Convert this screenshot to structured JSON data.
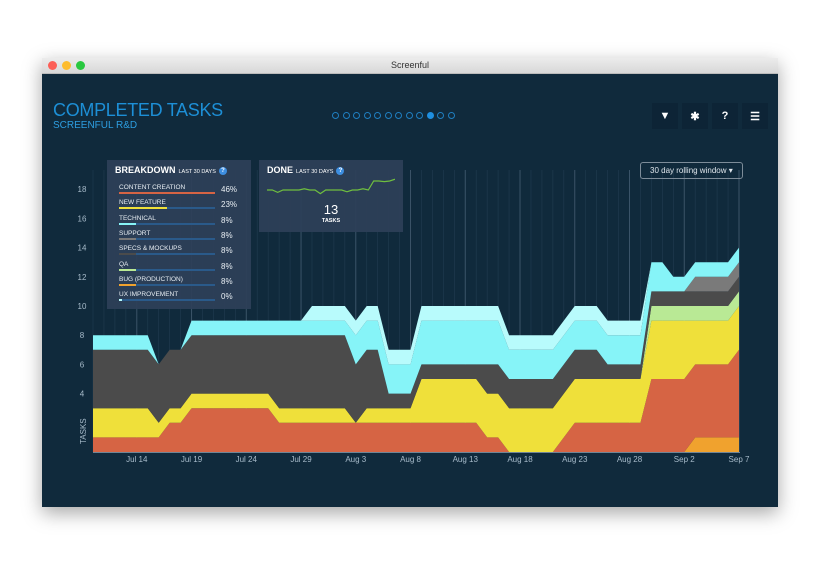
{
  "window": {
    "title": "Screenful"
  },
  "header": {
    "title": "COMPLETED TASKS",
    "subtitle": "SCREENFUL R&D",
    "pages": 12,
    "active_page": 10,
    "icons": [
      "filter-icon",
      "gear-icon",
      "help-icon",
      "menu-icon"
    ]
  },
  "controls": {
    "window_select": "30 day rolling window ▾"
  },
  "breakdown": {
    "title": "BREAKDOWN",
    "period": "LAST 30 DAYS",
    "help": "?",
    "items": [
      {
        "label": "CONTENT CREATION",
        "pct": "46%",
        "value": 46,
        "color": "#d66444"
      },
      {
        "label": "NEW FEATURE",
        "pct": "23%",
        "value": 23,
        "color": "#efe03a"
      },
      {
        "label": "TECHNICAL",
        "pct": "8%",
        "value": 8,
        "color": "#86f4f8"
      },
      {
        "label": "SUPPORT",
        "pct": "8%",
        "value": 8,
        "color": "#7a7a7a"
      },
      {
        "label": "SPECS & MOCKUPS",
        "pct": "8%",
        "value": 8,
        "color": "#4b4b4b"
      },
      {
        "label": "QA",
        "pct": "8%",
        "value": 8,
        "color": "#b9e995"
      },
      {
        "label": "BUG (PRODUCTION)",
        "pct": "8%",
        "value": 8,
        "color": "#f0a22e"
      },
      {
        "label": "UX IMPROVEMENT",
        "pct": "0%",
        "value": 0,
        "color": "#b8fbfc"
      }
    ]
  },
  "done": {
    "title": "DONE",
    "period": "LAST 30 DAYS",
    "help": "?",
    "count": "13",
    "unit": "TASKS",
    "sparkline": [
      8,
      8,
      7.6,
      8,
      8,
      8,
      8,
      8.2,
      8,
      8,
      7.4,
      8,
      8,
      8,
      8,
      7.7,
      8,
      8,
      8.2,
      8,
      9.5,
      9.5,
      9.4,
      9.5,
      9.8
    ],
    "color": "#6fbf3f"
  },
  "chart_data": {
    "type": "area",
    "stacked": true,
    "ylabel": "TASKS",
    "ylim": [
      0,
      19
    ],
    "yticks": [
      4,
      6,
      8,
      10,
      12,
      14,
      16,
      18
    ],
    "xtick_labels": [
      "Jul 14",
      "Jul 19",
      "Jul 24",
      "Jul 29",
      "Aug 3",
      "Aug 8",
      "Aug 13",
      "Aug 18",
      "Aug 23",
      "Aug 28",
      "Sep 2",
      "Sep 7"
    ],
    "x": [
      "Jul 10",
      "Jul 11",
      "Jul 12",
      "Jul 13",
      "Jul 14",
      "Jul 15",
      "Jul 16",
      "Jul 17",
      "Jul 18",
      "Jul 19",
      "Jul 20",
      "Jul 21",
      "Jul 22",
      "Jul 23",
      "Jul 24",
      "Jul 25",
      "Jul 26",
      "Jul 27",
      "Jul 28",
      "Jul 29",
      "Jul 30",
      "Jul 31",
      "Aug 1",
      "Aug 2",
      "Aug 3",
      "Aug 4",
      "Aug 5",
      "Aug 6",
      "Aug 7",
      "Aug 8",
      "Aug 9",
      "Aug 10",
      "Aug 11",
      "Aug 12",
      "Aug 13",
      "Aug 14",
      "Aug 15",
      "Aug 16",
      "Aug 17",
      "Aug 18",
      "Aug 19",
      "Aug 20",
      "Aug 21",
      "Aug 22",
      "Aug 23",
      "Aug 24",
      "Aug 25",
      "Aug 26",
      "Aug 27",
      "Aug 28",
      "Aug 29",
      "Aug 30",
      "Aug 31",
      "Sep 1",
      "Sep 2",
      "Sep 3",
      "Sep 4",
      "Sep 5",
      "Sep 6",
      "Sep 7"
    ],
    "series": [
      {
        "name": "BUG (PRODUCTION)",
        "color": "#f0a22e",
        "values": [
          0,
          0,
          0,
          0,
          0,
          0,
          0,
          0,
          0,
          0,
          0,
          0,
          0,
          0,
          0,
          0,
          0,
          0,
          0,
          0,
          0,
          0,
          0,
          0,
          0,
          0,
          0,
          0,
          0,
          0,
          0,
          0,
          0,
          0,
          0,
          0,
          0,
          0,
          0,
          0,
          0,
          0,
          0,
          0,
          0,
          0,
          0,
          0,
          0,
          0,
          0,
          0,
          0,
          0,
          0,
          1,
          1,
          1,
          1,
          1
        ]
      },
      {
        "name": "CONTENT CREATION",
        "color": "#d66444",
        "values": [
          1,
          1,
          1,
          1,
          1,
          1,
          1,
          2,
          2,
          3,
          3,
          3,
          3,
          3,
          3,
          3,
          3,
          2,
          2,
          2,
          2,
          2,
          2,
          2,
          2,
          2,
          2,
          2,
          2,
          2,
          2,
          2,
          2,
          2,
          2,
          2,
          1,
          1,
          0,
          0,
          0,
          0,
          0,
          1,
          2,
          2,
          2,
          2,
          2,
          2,
          2,
          5,
          5,
          5,
          5,
          5,
          5,
          5,
          5,
          6
        ]
      },
      {
        "name": "NEW FEATURE",
        "color": "#efe03a",
        "values": [
          2,
          2,
          2,
          2,
          2,
          2,
          1,
          1,
          1,
          1,
          1,
          1,
          1,
          1,
          1,
          1,
          1,
          1,
          1,
          1,
          1,
          1,
          1,
          1,
          0,
          1,
          1,
          1,
          1,
          1,
          3,
          3,
          3,
          3,
          3,
          3,
          3,
          3,
          3,
          3,
          3,
          3,
          3,
          3,
          3,
          3,
          3,
          3,
          3,
          3,
          3,
          4,
          4,
          4,
          4,
          3,
          3,
          3,
          3,
          3
        ]
      },
      {
        "name": "QA",
        "color": "#b9e995",
        "values": [
          0,
          0,
          0,
          0,
          0,
          0,
          0,
          0,
          0,
          0,
          0,
          0,
          0,
          0,
          0,
          0,
          0,
          0,
          0,
          0,
          0,
          0,
          0,
          0,
          0,
          0,
          0,
          0,
          0,
          0,
          0,
          0,
          0,
          0,
          0,
          0,
          0,
          0,
          0,
          0,
          0,
          0,
          0,
          0,
          0,
          0,
          0,
          0,
          0,
          0,
          0,
          1,
          1,
          1,
          1,
          1,
          1,
          1,
          1,
          1
        ]
      },
      {
        "name": "SPECS & MOCKUPS",
        "color": "#4b4b4b",
        "values": [
          4,
          4,
          4,
          4,
          4,
          4,
          4,
          4,
          4,
          4,
          4,
          4,
          4,
          4,
          4,
          4,
          4,
          5,
          5,
          5,
          5,
          5,
          5,
          5,
          4,
          4,
          4,
          1,
          1,
          1,
          1,
          1,
          1,
          1,
          1,
          1,
          2,
          2,
          2,
          2,
          2,
          2,
          2,
          2,
          2,
          2,
          2,
          1,
          1,
          1,
          1,
          1,
          1,
          1,
          1,
          1,
          1,
          1,
          1,
          1
        ]
      },
      {
        "name": "SUPPORT",
        "color": "#7a7a7a",
        "values": [
          0,
          0,
          0,
          0,
          0,
          0,
          0,
          0,
          0,
          0,
          0,
          0,
          0,
          0,
          0,
          0,
          0,
          0,
          0,
          0,
          0,
          0,
          0,
          0,
          0,
          0,
          0,
          0,
          0,
          0,
          0,
          0,
          0,
          0,
          0,
          0,
          0,
          0,
          0,
          0,
          0,
          0,
          0,
          0,
          0,
          0,
          0,
          0,
          0,
          0,
          0,
          0,
          0,
          0,
          0,
          1,
          1,
          1,
          1,
          1
        ]
      },
      {
        "name": "TECHNICAL",
        "color": "#86f4f8",
        "values": [
          1,
          1,
          1,
          1,
          1,
          1,
          0,
          0,
          0,
          1,
          1,
          1,
          1,
          1,
          1,
          1,
          1,
          1,
          1,
          1,
          1,
          1,
          1,
          1,
          2,
          2,
          2,
          2,
          2,
          2,
          3,
          3,
          3,
          3,
          3,
          3,
          3,
          3,
          2,
          2,
          2,
          2,
          2,
          2,
          2,
          2,
          2,
          2,
          2,
          2,
          2,
          2,
          2,
          1,
          1,
          1,
          1,
          1,
          1,
          1
        ]
      },
      {
        "name": "UX IMPROVEMENT",
        "color": "#b8fbfc",
        "values": [
          0,
          0,
          0,
          0,
          0,
          0,
          0,
          0,
          0,
          0,
          0,
          0,
          0,
          0,
          0,
          0,
          0,
          0,
          0,
          0,
          1,
          1,
          1,
          1,
          1,
          1,
          1,
          1,
          1,
          1,
          1,
          1,
          1,
          1,
          1,
          1,
          1,
          1,
          1,
          1,
          1,
          1,
          1,
          1,
          1,
          1,
          1,
          1,
          1,
          1,
          1,
          0,
          0,
          0,
          0,
          0,
          0,
          0,
          0,
          0
        ]
      }
    ]
  }
}
